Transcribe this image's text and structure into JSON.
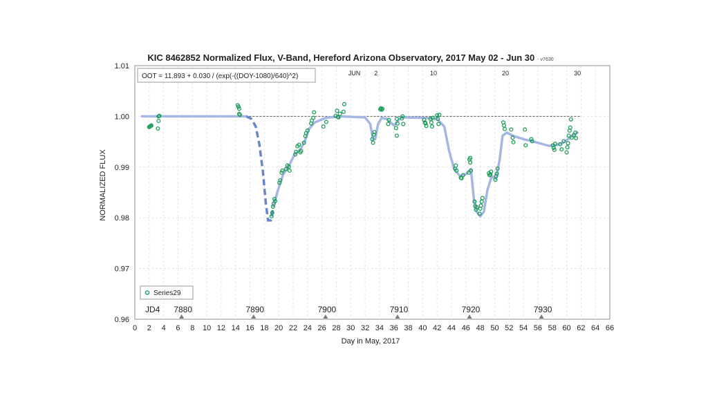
{
  "chart_data": {
    "type": "scatter",
    "title": "KIC 8462852 Normalized Flux, V-Band, Hereford Arizona Observatory, 2017 May 02 - Jun 30",
    "version_tag": "- v7630",
    "xlabel": "Day in May, 2017",
    "ylabel": "NORMALIZED FLUX",
    "xlim": [
      0,
      66
    ],
    "ylim": [
      0.96,
      1.01
    ],
    "x_ticks": [
      "0",
      "2",
      "4",
      "6",
      "8",
      "10",
      "12",
      "14",
      "16",
      "18",
      "20",
      "22",
      "24",
      "26",
      "28",
      "30",
      "32",
      "34",
      "36",
      "38",
      "40",
      "42",
      "44",
      "46",
      "48",
      "50",
      "52",
      "54",
      "56",
      "58",
      "60",
      "62",
      "64",
      "66"
    ],
    "y_ticks": [
      "0.96",
      "0.97",
      "0.98",
      "0.99",
      "1.00",
      "1.01"
    ],
    "grid": true,
    "legend_position": "bottom-left",
    "reference_line": 1.0,
    "annotation": "OOT = 11.893 + 0.030 / (exp(-((DOY-1080)/640)^2)",
    "jd_prefix": "JD4",
    "jd_markers": [
      {
        "label": "7880",
        "x": 6.5
      },
      {
        "label": "7890",
        "x": 16.5
      },
      {
        "label": "7900",
        "x": 26.5
      },
      {
        "label": "7910",
        "x": 36.5
      },
      {
        "label": "7920",
        "x": 46.5
      },
      {
        "label": "7930",
        "x": 56.5
      }
    ],
    "month_labels": [
      {
        "label": "JUN",
        "x": 30.5
      },
      {
        "label": "2",
        "x": 33.5
      },
      {
        "label": "10",
        "x": 41.5
      },
      {
        "label": "20",
        "x": 51.5
      },
      {
        "label": "30",
        "x": 61.5
      }
    ],
    "series": [
      {
        "name": "Series29",
        "color": "#1e9e5a",
        "points": [
          [
            2.0,
            0.9979
          ],
          [
            2.1,
            0.998
          ],
          [
            2.2,
            0.9981
          ],
          [
            2.3,
            0.9982
          ],
          [
            3.2,
            0.9976
          ],
          [
            3.3,
            1.0
          ],
          [
            3.3,
            0.9991
          ],
          [
            3.4,
            1.0001
          ],
          [
            14.3,
            1.0022
          ],
          [
            14.4,
            1.0019
          ],
          [
            14.5,
            1.0005
          ],
          [
            14.6,
            1.0003
          ],
          [
            14.5,
            1.0015
          ],
          [
            19.0,
            0.9803
          ],
          [
            19.1,
            0.981
          ],
          [
            19.2,
            0.9822
          ],
          [
            19.3,
            0.9828
          ],
          [
            19.4,
            0.9837
          ],
          [
            19.5,
            0.9833
          ],
          [
            20.1,
            0.9869
          ],
          [
            20.2,
            0.9874
          ],
          [
            20.4,
            0.9889
          ],
          [
            20.5,
            0.9893
          ],
          [
            21.0,
            0.9896
          ],
          [
            21.2,
            0.9903
          ],
          [
            21.4,
            0.9901
          ],
          [
            21.5,
            0.9893
          ],
          [
            22.3,
            0.9925
          ],
          [
            22.4,
            0.993
          ],
          [
            22.6,
            0.9941
          ],
          [
            22.8,
            0.9944
          ],
          [
            23.0,
            0.9929
          ],
          [
            23.1,
            0.9932
          ],
          [
            23.5,
            0.9948
          ],
          [
            23.7,
            0.9961
          ],
          [
            23.8,
            0.9967
          ],
          [
            24.0,
            0.9972
          ],
          [
            24.5,
            0.9986
          ],
          [
            24.6,
            0.9992
          ],
          [
            24.8,
            0.9997
          ],
          [
            24.9,
            1.0008
          ],
          [
            26.2,
            0.998
          ],
          [
            26.6,
            0.9989
          ],
          [
            27.9,
            1.0001
          ],
          [
            28.1,
            1.0011
          ],
          [
            28.2,
            0.9999
          ],
          [
            28.3,
            0.9998
          ],
          [
            28.5,
            1.0005
          ],
          [
            29.1,
            1.0024
          ],
          [
            29.0,
            1.0009
          ],
          [
            33.0,
            0.9955
          ],
          [
            33.1,
            0.9948
          ],
          [
            33.2,
            0.9964
          ],
          [
            33.3,
            0.9969
          ],
          [
            34.1,
            1.0014
          ],
          [
            34.2,
            1.0016
          ],
          [
            34.3,
            1.0013
          ],
          [
            34.4,
            1.0015
          ],
          [
            35.2,
            0.9985
          ],
          [
            35.3,
            0.9993
          ],
          [
            36.3,
            0.9977
          ],
          [
            36.4,
            0.9962
          ],
          [
            36.5,
            0.9986
          ],
          [
            36.4,
            0.9995
          ],
          [
            37.1,
            0.9996
          ],
          [
            37.2,
            1.0
          ],
          [
            37.3,
            0.9985
          ],
          [
            40.2,
            0.9993
          ],
          [
            40.3,
            0.9988
          ],
          [
            40.4,
            0.9986
          ],
          [
            40.5,
            0.9981
          ],
          [
            41.1,
            0.9995
          ],
          [
            41.2,
            0.9988
          ],
          [
            41.3,
            0.998
          ],
          [
            41.4,
            0.9997
          ],
          [
            42.0,
            1.0002
          ],
          [
            42.1,
            0.9995
          ],
          [
            42.2,
            0.9985
          ],
          [
            42.3,
            1.0003
          ],
          [
            44.5,
            0.9897
          ],
          [
            44.6,
            0.9903
          ],
          [
            44.7,
            0.9893
          ],
          [
            45.3,
            0.9879
          ],
          [
            45.4,
            0.9878
          ],
          [
            45.6,
            0.9884
          ],
          [
            46.4,
            0.9889
          ],
          [
            46.5,
            0.9915
          ],
          [
            46.6,
            0.9918
          ],
          [
            46.7,
            0.9893
          ],
          [
            46.6,
            0.9909
          ],
          [
            47.2,
            0.9832
          ],
          [
            47.3,
            0.9823
          ],
          [
            47.4,
            0.9816
          ],
          [
            47.5,
            0.9821
          ],
          [
            47.9,
            0.9808
          ],
          [
            48.0,
            0.9818
          ],
          [
            48.1,
            0.9824
          ],
          [
            48.2,
            0.9832
          ],
          [
            48.3,
            0.9839
          ],
          [
            49.2,
            0.9888
          ],
          [
            49.3,
            0.9884
          ],
          [
            49.4,
            0.9886
          ],
          [
            49.5,
            0.9891
          ],
          [
            50.1,
            0.9875
          ],
          [
            50.2,
            0.9882
          ],
          [
            50.3,
            0.9887
          ],
          [
            50.4,
            0.9897
          ],
          [
            51.2,
            0.9988
          ],
          [
            51.3,
            0.9982
          ],
          [
            51.4,
            0.9975
          ],
          [
            52.3,
            0.9974
          ],
          [
            52.5,
            0.9958
          ],
          [
            52.6,
            0.9949
          ],
          [
            54.2,
            0.9974
          ],
          [
            54.3,
            0.9943
          ],
          [
            55.1,
            0.9955
          ],
          [
            55.2,
            0.9951
          ],
          [
            58.1,
            0.9943
          ],
          [
            58.2,
            0.9938
          ],
          [
            58.3,
            0.9934
          ],
          [
            58.4,
            0.9946
          ],
          [
            59.1,
            0.9945
          ],
          [
            59.3,
            0.9935
          ],
          [
            59.6,
            0.9951
          ],
          [
            60.0,
            0.9929
          ],
          [
            60.1,
            0.9939
          ],
          [
            60.2,
            0.9947
          ],
          [
            60.3,
            0.9962
          ],
          [
            60.4,
            0.9972
          ],
          [
            60.5,
            0.9978
          ],
          [
            60.6,
            0.9994
          ],
          [
            60.7,
            0.9958
          ],
          [
            61.0,
            0.9963
          ],
          [
            61.2,
            0.9968
          ],
          [
            61.3,
            0.9957
          ]
        ]
      }
    ],
    "model_curve": {
      "color": "#a5b6e4",
      "points": [
        [
          1,
          1.0
        ],
        [
          15.5,
          1.0
        ],
        [
          16.2,
          0.9995
        ],
        [
          16.8,
          0.998
        ],
        [
          17.3,
          0.9945
        ],
        [
          17.8,
          0.989
        ],
        [
          18.2,
          0.983
        ],
        [
          18.5,
          0.9795
        ],
        [
          18.9,
          0.9795
        ],
        [
          19.3,
          0.9825
        ],
        [
          19.9,
          0.9855
        ],
        [
          20.6,
          0.9885
        ],
        [
          21.5,
          0.9905
        ],
        [
          22.2,
          0.9925
        ],
        [
          23.0,
          0.9935
        ],
        [
          23.6,
          0.995
        ],
        [
          24.2,
          0.9975
        ],
        [
          25.0,
          0.9988
        ],
        [
          26.5,
          0.9997
        ],
        [
          28.5,
          1.0
        ],
        [
          32.0,
          0.9998
        ],
        [
          32.7,
          0.9985
        ],
        [
          33.1,
          0.9955
        ],
        [
          33.4,
          0.9955
        ],
        [
          33.8,
          0.9985
        ],
        [
          34.3,
          0.9997
        ],
        [
          35.0,
          0.9995
        ],
        [
          36.0,
          0.9982
        ],
        [
          37.0,
          0.9998
        ],
        [
          40.5,
          0.9997
        ],
        [
          42.0,
          0.9995
        ],
        [
          43.0,
          0.998
        ],
        [
          43.7,
          0.993
        ],
        [
          44.4,
          0.9895
        ],
        [
          45.2,
          0.9882
        ],
        [
          46.0,
          0.9886
        ],
        [
          46.7,
          0.9896
        ],
        [
          47.1,
          0.9838
        ],
        [
          47.5,
          0.9812
        ],
        [
          48.0,
          0.9803
        ],
        [
          48.5,
          0.9812
        ],
        [
          49.0,
          0.9855
        ],
        [
          49.6,
          0.9882
        ],
        [
          50.2,
          0.9877
        ],
        [
          50.7,
          0.9915
        ],
        [
          51.1,
          0.9962
        ],
        [
          51.7,
          0.9968
        ],
        [
          52.5,
          0.9962
        ],
        [
          54.0,
          0.9955
        ],
        [
          56.0,
          0.9948
        ],
        [
          57.5,
          0.9942
        ],
        [
          58.5,
          0.9943
        ],
        [
          59.5,
          0.9948
        ],
        [
          60.2,
          0.9955
        ],
        [
          60.8,
          0.9962
        ],
        [
          61.5,
          0.9968
        ]
      ],
      "dashed_range": [
        15.5,
        19.3
      ],
      "dashed_color": "#6a85cc"
    }
  }
}
